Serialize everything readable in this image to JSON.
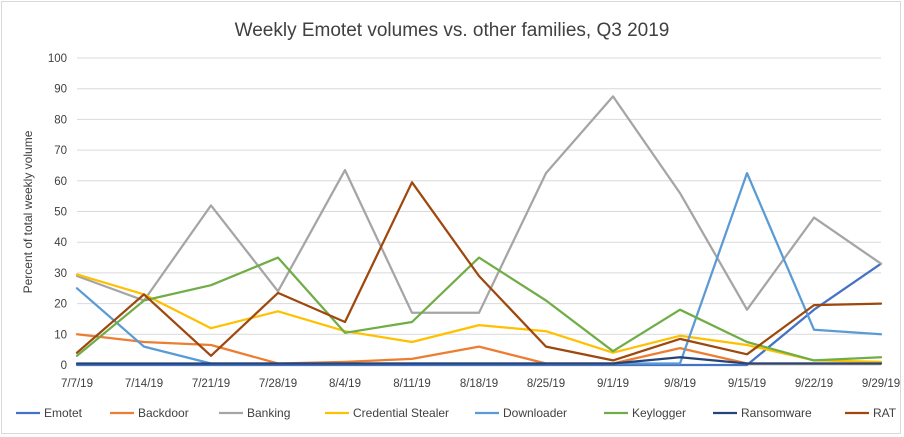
{
  "chart_data": {
    "type": "line",
    "title": "Weekly Emotet volumes vs. other families, Q3 2019",
    "xlabel": "",
    "ylabel": "Percent of total weekly volume",
    "ylim": [
      0,
      100
    ],
    "yticks": [
      0,
      10,
      20,
      30,
      40,
      50,
      60,
      70,
      80,
      90,
      100
    ],
    "grid": true,
    "legend_position": "bottom",
    "categories": [
      "7/7/19",
      "7/14/19",
      "7/21/19",
      "7/28/19",
      "8/4/19",
      "8/11/19",
      "8/18/19",
      "8/25/19",
      "9/1/19",
      "9/8/19",
      "9/15/19",
      "9/22/19",
      "9/29/19"
    ],
    "series": [
      {
        "name": "Emotet",
        "color": "#4472c4",
        "values": [
          0,
          0,
          0,
          0,
          0,
          0,
          0,
          0,
          0,
          0,
          0,
          18,
          33
        ]
      },
      {
        "name": "Backdoor",
        "color": "#ed7d31",
        "values": [
          10,
          7.5,
          6.5,
          0.5,
          1,
          2,
          6,
          0.5,
          0.5,
          5.5,
          0.5,
          0.5,
          0.5
        ]
      },
      {
        "name": "Banking",
        "color": "#a5a5a5",
        "values": [
          29,
          21,
          52,
          24,
          63.5,
          17,
          17,
          62.5,
          87.5,
          56,
          18,
          48,
          33
        ]
      },
      {
        "name": "Credential Stealer",
        "color": "#ffc000",
        "values": [
          29.5,
          23,
          12,
          17.5,
          11,
          7.5,
          13,
          11,
          4,
          9.5,
          6.5,
          1.5,
          1
        ]
      },
      {
        "name": "Downloader",
        "color": "#5b9bd5",
        "values": [
          25,
          6,
          0.5,
          0.5,
          0.5,
          0.5,
          0.5,
          0.5,
          0.5,
          0.5,
          62.5,
          11.5,
          10
        ]
      },
      {
        "name": "Keylogger",
        "color": "#70ad47",
        "values": [
          3,
          21,
          26,
          35,
          10.5,
          14,
          35,
          21,
          4.5,
          18,
          7.5,
          1.5,
          2.5
        ]
      },
      {
        "name": "Ransomware",
        "color": "#264478",
        "values": [
          0.5,
          0.5,
          0.5,
          0.5,
          0.5,
          0.5,
          0.5,
          0.5,
          0.5,
          2.5,
          0.5,
          0.5,
          0.5
        ]
      },
      {
        "name": "RAT",
        "color": "#9e480e",
        "values": [
          4,
          23,
          3,
          23.5,
          14,
          59.5,
          29,
          6,
          1.5,
          8.5,
          3.5,
          19.5,
          20
        ]
      }
    ]
  },
  "colors": {
    "grid": "#d9d9d9",
    "axis": "#bfbfbf",
    "text": "#404040"
  }
}
